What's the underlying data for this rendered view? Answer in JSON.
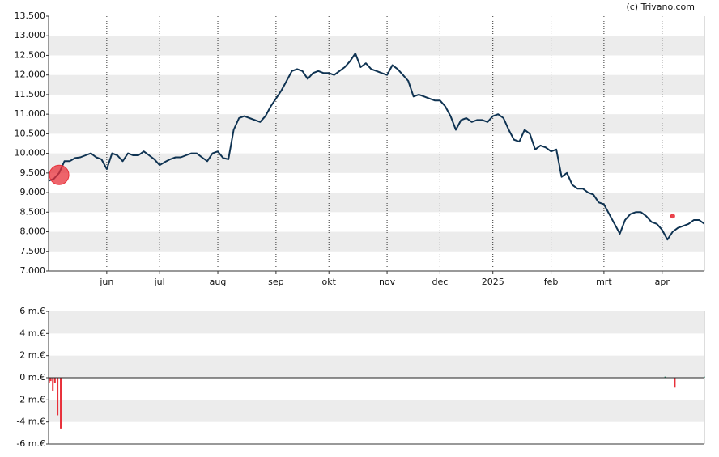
{
  "credit": "(c) Trivano.com",
  "chart_data": [
    {
      "type": "line",
      "color": "#0f3352",
      "grid": true,
      "categories": [
        null,
        null,
        null,
        null,
        null,
        null,
        null,
        null,
        null,
        null,
        null,
        "jun",
        null,
        null,
        null,
        null,
        null,
        null,
        null,
        null,
        null,
        "jul",
        null,
        null,
        null,
        null,
        null,
        null,
        null,
        null,
        null,
        null,
        "aug",
        null,
        null,
        null,
        null,
        null,
        null,
        null,
        null,
        null,
        null,
        "sep",
        null,
        null,
        null,
        null,
        null,
        null,
        null,
        null,
        null,
        "okt",
        null,
        null,
        null,
        null,
        null,
        null,
        null,
        null,
        null,
        null,
        "nov",
        null,
        null,
        null,
        null,
        null,
        null,
        null,
        null,
        null,
        "dec",
        null,
        null,
        null,
        null,
        null,
        null,
        null,
        null,
        null,
        "2025",
        null,
        null,
        null,
        null,
        null,
        null,
        null,
        null,
        null,
        null,
        "feb",
        null,
        null,
        null,
        null,
        null,
        null,
        null,
        null,
        null,
        "mrt",
        null,
        null,
        null,
        null,
        null,
        null,
        null,
        null,
        null,
        null,
        "apr",
        null,
        null,
        null,
        null,
        null,
        null,
        null,
        null
      ],
      "values": [
        9.3,
        9.35,
        9.5,
        9.8,
        9.8,
        9.88,
        9.9,
        9.95,
        10.0,
        9.9,
        9.85,
        9.6,
        10.0,
        9.95,
        9.8,
        10.0,
        9.95,
        9.95,
        10.05,
        9.95,
        9.85,
        9.7,
        9.78,
        9.85,
        9.9,
        9.9,
        9.95,
        10.0,
        10.0,
        9.9,
        9.8,
        10.0,
        10.05,
        9.88,
        9.85,
        10.6,
        10.9,
        10.95,
        10.9,
        10.85,
        10.8,
        10.95,
        11.2,
        11.4,
        11.6,
        11.85,
        12.1,
        12.15,
        12.1,
        11.9,
        12.05,
        12.1,
        12.05,
        12.05,
        12.0,
        12.1,
        12.2,
        12.35,
        12.55,
        12.2,
        12.3,
        12.15,
        12.1,
        12.05,
        12.0,
        12.25,
        12.15,
        12.0,
        11.85,
        11.45,
        11.5,
        11.45,
        11.4,
        11.35,
        11.35,
        11.2,
        10.95,
        10.6,
        10.85,
        10.9,
        10.8,
        10.85,
        10.85,
        10.8,
        10.95,
        11.0,
        10.9,
        10.6,
        10.35,
        10.3,
        10.6,
        10.5,
        10.1,
        10.2,
        10.15,
        10.05,
        10.1,
        9.4,
        9.5,
        9.2,
        9.1,
        9.1,
        9.0,
        8.95,
        8.75,
        8.7,
        8.45,
        8.2,
        7.95,
        8.3,
        8.45,
        8.5,
        8.5,
        8.4,
        8.25,
        8.2,
        8.05,
        7.8,
        8.0,
        8.1,
        8.15,
        8.2,
        8.3,
        8.3,
        8.2
      ],
      "markers": [
        {
          "index": 2,
          "value": 9.45,
          "color": "#e8303a"
        },
        {
          "index": 118,
          "value": 8.4,
          "color": "#e8303a"
        }
      ],
      "ylim": [
        7.0,
        13.5
      ],
      "yticks": [
        {
          "value": 13.5,
          "label": "13.500"
        },
        {
          "value": 13.0,
          "label": "13.000"
        },
        {
          "value": 12.5,
          "label": "12.500"
        },
        {
          "value": 12.0,
          "label": "12.000"
        },
        {
          "value": 11.5,
          "label": "11.500"
        },
        {
          "value": 11.0,
          "label": "11.000"
        },
        {
          "value": 10.5,
          "label": "10.500"
        },
        {
          "value": 10.0,
          "label": "10.000"
        },
        {
          "value": 9.5,
          "label": "9.500"
        },
        {
          "value": 9.0,
          "label": "9.000"
        },
        {
          "value": 8.5,
          "label": "8.500"
        },
        {
          "value": 8.0,
          "label": "8.000"
        },
        {
          "value": 7.5,
          "label": "7.500"
        },
        {
          "value": 7.0,
          "label": "7.000"
        }
      ]
    },
    {
      "type": "bar",
      "positive_color": "#2a8a6a",
      "negative_color": "#e8303a",
      "grid": true,
      "x": [
        0.1,
        0.4,
        0.8,
        1.2,
        1.7,
        2.3,
        116.6,
        118.4,
        124.0
      ],
      "values": [
        -0.5,
        -0.3,
        -1.2,
        -0.5,
        -3.4,
        -4.6,
        0.1,
        -0.9,
        0.1
      ],
      "ylim": [
        -6,
        6
      ],
      "yticks": [
        {
          "value": 6,
          "label": "6 m.€"
        },
        {
          "value": 4,
          "label": "4 m.€"
        },
        {
          "value": 2,
          "label": "2 m.€"
        },
        {
          "value": 0,
          "label": "0 m.€"
        },
        {
          "value": -2,
          "label": "-2 m.€"
        },
        {
          "value": -4,
          "label": "-4 m.€"
        },
        {
          "value": -6,
          "label": "-6 m.€"
        }
      ]
    }
  ]
}
